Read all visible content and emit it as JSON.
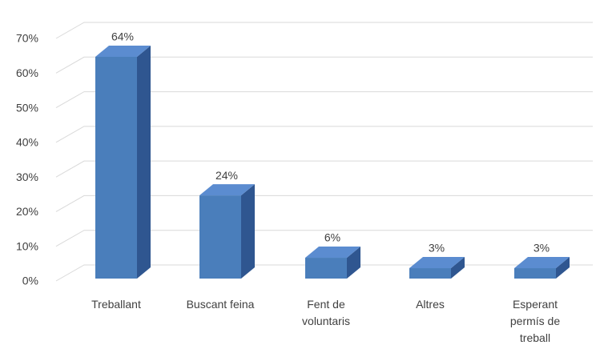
{
  "chart_data": {
    "type": "bar3d",
    "categories": [
      "Treballant",
      "Buscant feina",
      "Fent de voluntaris",
      "Altres",
      "Esperant permís de treball"
    ],
    "values": [
      64,
      24,
      6,
      3,
      3
    ],
    "value_labels": [
      "64%",
      "24%",
      "6%",
      "3%",
      "3%"
    ],
    "color": "#4a7ebb",
    "ylim": [
      0,
      70
    ],
    "yticks": [
      {
        "value": 0,
        "label": "0%"
      },
      {
        "value": 10,
        "label": "10%"
      },
      {
        "value": 20,
        "label": "20%"
      },
      {
        "value": 30,
        "label": "30%"
      },
      {
        "value": 40,
        "label": "40%"
      },
      {
        "value": 50,
        "label": "50%"
      },
      {
        "value": 60,
        "label": "60%"
      },
      {
        "value": 70,
        "label": "70%"
      }
    ],
    "grid": true
  }
}
